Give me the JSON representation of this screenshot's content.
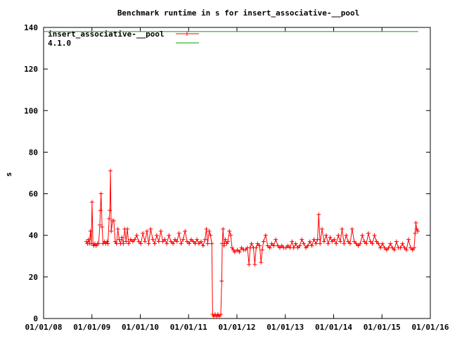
{
  "chart_data": {
    "type": "line",
    "title": "Benchmark runtime in s for insert_associative-__pool",
    "xlabel": "",
    "ylabel": "s",
    "xlim": [
      "2008-01-01",
      "2016-01-01"
    ],
    "ylim": [
      0,
      140
    ],
    "x_ticks": [
      "01/01/08",
      "01/01/09",
      "01/01/10",
      "01/01/11",
      "01/01/12",
      "01/01/13",
      "01/01/14",
      "01/01/15",
      "01/01/16"
    ],
    "y_ticks": [
      "0",
      "20",
      "40",
      "60",
      "80",
      "100",
      "120",
      "140"
    ],
    "grid": false,
    "legend": "top-left",
    "colors": {
      "series": "#ff0000",
      "reference": "#00a000",
      "axis": "#000000"
    },
    "series": [
      {
        "name": "insert_associative-__pool",
        "points": [
          [
            "2008-11-20",
            37
          ],
          [
            "2008-11-28",
            36
          ],
          [
            "2008-12-05",
            38
          ],
          [
            "2008-12-12",
            36
          ],
          [
            "2008-12-20",
            42
          ],
          [
            "2008-12-26",
            36
          ],
          [
            "2009-01-01",
            56
          ],
          [
            "2009-01-08",
            36
          ],
          [
            "2009-01-15",
            35
          ],
          [
            "2009-01-22",
            36
          ],
          [
            "2009-02-01",
            35
          ],
          [
            "2009-02-10",
            36
          ],
          [
            "2009-02-20",
            36
          ],
          [
            "2009-03-01",
            45
          ],
          [
            "2009-03-05",
            52
          ],
          [
            "2009-03-10",
            60
          ],
          [
            "2009-03-18",
            44
          ],
          [
            "2009-03-25",
            36
          ],
          [
            "2009-04-05",
            37
          ],
          [
            "2009-04-15",
            36
          ],
          [
            "2009-04-25",
            37
          ],
          [
            "2009-05-01",
            36
          ],
          [
            "2009-05-10",
            48
          ],
          [
            "2009-05-16",
            52
          ],
          [
            "2009-05-20",
            71
          ],
          [
            "2009-05-26",
            42
          ],
          [
            "2009-06-05",
            47
          ],
          [
            "2009-06-15",
            47
          ],
          [
            "2009-06-25",
            37
          ],
          [
            "2009-07-05",
            36
          ],
          [
            "2009-07-15",
            43
          ],
          [
            "2009-07-25",
            38
          ],
          [
            "2009-08-05",
            36
          ],
          [
            "2009-08-15",
            39
          ],
          [
            "2009-08-25",
            36
          ],
          [
            "2009-09-05",
            43
          ],
          [
            "2009-09-15",
            37
          ],
          [
            "2009-09-25",
            43
          ],
          [
            "2009-10-05",
            36
          ],
          [
            "2009-10-20",
            38
          ],
          [
            "2009-11-05",
            37
          ],
          [
            "2009-11-20",
            38
          ],
          [
            "2009-12-05",
            40
          ],
          [
            "2009-12-20",
            37
          ],
          [
            "2010-01-05",
            36
          ],
          [
            "2010-01-20",
            41
          ],
          [
            "2010-02-05",
            37
          ],
          [
            "2010-02-20",
            42
          ],
          [
            "2010-03-05",
            36
          ],
          [
            "2010-03-20",
            43
          ],
          [
            "2010-04-05",
            38
          ],
          [
            "2010-04-20",
            36
          ],
          [
            "2010-05-05",
            40
          ],
          [
            "2010-05-20",
            37
          ],
          [
            "2010-06-05",
            42
          ],
          [
            "2010-06-20",
            37
          ],
          [
            "2010-07-05",
            38
          ],
          [
            "2010-07-20",
            36
          ],
          [
            "2010-08-05",
            40
          ],
          [
            "2010-08-20",
            37
          ],
          [
            "2010-09-05",
            36
          ],
          [
            "2010-09-20",
            38
          ],
          [
            "2010-10-05",
            37
          ],
          [
            "2010-10-20",
            41
          ],
          [
            "2010-11-05",
            36
          ],
          [
            "2010-11-20",
            38
          ],
          [
            "2010-12-05",
            42
          ],
          [
            "2010-12-20",
            37
          ],
          [
            "2011-01-05",
            36
          ],
          [
            "2011-01-20",
            38
          ],
          [
            "2011-02-05",
            37
          ],
          [
            "2011-02-20",
            36
          ],
          [
            "2011-03-05",
            38
          ],
          [
            "2011-03-20",
            36
          ],
          [
            "2011-04-05",
            37
          ],
          [
            "2011-04-20",
            35
          ],
          [
            "2011-05-05",
            38
          ],
          [
            "2011-05-15",
            43
          ],
          [
            "2011-05-25",
            36
          ],
          [
            "2011-06-05",
            42
          ],
          [
            "2011-06-15",
            40
          ],
          [
            "2011-06-25",
            36
          ],
          [
            "2011-07-01",
            2
          ],
          [
            "2011-07-10",
            1
          ],
          [
            "2011-07-20",
            2
          ],
          [
            "2011-08-01",
            1
          ],
          [
            "2011-08-10",
            2
          ],
          [
            "2011-08-20",
            1
          ],
          [
            "2011-09-01",
            2
          ],
          [
            "2011-09-08",
            18
          ],
          [
            "2011-09-12",
            36
          ],
          [
            "2011-09-18",
            43
          ],
          [
            "2011-09-25",
            35
          ],
          [
            "2011-10-05",
            38
          ],
          [
            "2011-10-15",
            36
          ],
          [
            "2011-10-25",
            37
          ],
          [
            "2011-11-05",
            42
          ],
          [
            "2011-11-15",
            40
          ],
          [
            "2011-11-25",
            34
          ],
          [
            "2011-12-05",
            33
          ],
          [
            "2011-12-15",
            32
          ],
          [
            "2012-01-05",
            33
          ],
          [
            "2012-01-20",
            32
          ],
          [
            "2012-02-05",
            34
          ],
          [
            "2012-02-20",
            33
          ],
          [
            "2012-03-05",
            33
          ],
          [
            "2012-03-20",
            34
          ],
          [
            "2012-04-01",
            26
          ],
          [
            "2012-04-10",
            34
          ],
          [
            "2012-04-20",
            36
          ],
          [
            "2012-05-05",
            34
          ],
          [
            "2012-05-15",
            26
          ],
          [
            "2012-05-25",
            34
          ],
          [
            "2012-06-05",
            36
          ],
          [
            "2012-06-20",
            35
          ],
          [
            "2012-07-01",
            27
          ],
          [
            "2012-07-10",
            33
          ],
          [
            "2012-07-20",
            37
          ],
          [
            "2012-08-05",
            40
          ],
          [
            "2012-08-20",
            35
          ],
          [
            "2012-09-05",
            34
          ],
          [
            "2012-09-20",
            36
          ],
          [
            "2012-10-05",
            35
          ],
          [
            "2012-10-20",
            38
          ],
          [
            "2012-11-05",
            35
          ],
          [
            "2012-11-20",
            34
          ],
          [
            "2012-12-05",
            35
          ],
          [
            "2012-12-20",
            34
          ],
          [
            "2013-01-05",
            34
          ],
          [
            "2013-01-20",
            35
          ],
          [
            "2013-02-05",
            34
          ],
          [
            "2013-02-20",
            37
          ],
          [
            "2013-03-05",
            34
          ],
          [
            "2013-03-20",
            36
          ],
          [
            "2013-04-05",
            34
          ],
          [
            "2013-04-20",
            35
          ],
          [
            "2013-05-05",
            38
          ],
          [
            "2013-05-20",
            36
          ],
          [
            "2013-06-05",
            34
          ],
          [
            "2013-06-20",
            35
          ],
          [
            "2013-07-05",
            37
          ],
          [
            "2013-07-20",
            35
          ],
          [
            "2013-08-05",
            38
          ],
          [
            "2013-08-20",
            36
          ],
          [
            "2013-09-01",
            38
          ],
          [
            "2013-09-10",
            50
          ],
          [
            "2013-09-20",
            36
          ],
          [
            "2013-10-05",
            43
          ],
          [
            "2013-10-20",
            37
          ],
          [
            "2013-11-05",
            40
          ],
          [
            "2013-11-20",
            36
          ],
          [
            "2013-12-05",
            39
          ],
          [
            "2013-12-20",
            37
          ],
          [
            "2014-01-05",
            38
          ],
          [
            "2014-01-20",
            36
          ],
          [
            "2014-02-05",
            40
          ],
          [
            "2014-02-20",
            37
          ],
          [
            "2014-03-05",
            43
          ],
          [
            "2014-03-20",
            36
          ],
          [
            "2014-04-05",
            40
          ],
          [
            "2014-04-20",
            37
          ],
          [
            "2014-05-05",
            36
          ],
          [
            "2014-05-20",
            43
          ],
          [
            "2014-06-05",
            37
          ],
          [
            "2014-06-20",
            36
          ],
          [
            "2014-07-05",
            35
          ],
          [
            "2014-07-20",
            36
          ],
          [
            "2014-08-05",
            40
          ],
          [
            "2014-08-20",
            37
          ],
          [
            "2014-09-05",
            36
          ],
          [
            "2014-09-20",
            41
          ],
          [
            "2014-10-05",
            37
          ],
          [
            "2014-10-20",
            36
          ],
          [
            "2014-11-05",
            40
          ],
          [
            "2014-11-20",
            37
          ],
          [
            "2014-12-05",
            36
          ],
          [
            "2014-12-20",
            34
          ],
          [
            "2015-01-05",
            36
          ],
          [
            "2015-01-20",
            34
          ],
          [
            "2015-02-05",
            33
          ],
          [
            "2015-02-20",
            34
          ],
          [
            "2015-03-05",
            36
          ],
          [
            "2015-03-20",
            34
          ],
          [
            "2015-04-05",
            33
          ],
          [
            "2015-04-20",
            37
          ],
          [
            "2015-05-05",
            34
          ],
          [
            "2015-05-20",
            34
          ],
          [
            "2015-06-05",
            36
          ],
          [
            "2015-06-20",
            34
          ],
          [
            "2015-07-05",
            33
          ],
          [
            "2015-07-20",
            38
          ],
          [
            "2015-08-05",
            34
          ],
          [
            "2015-08-20",
            33
          ],
          [
            "2015-09-01",
            34
          ],
          [
            "2015-09-08",
            41
          ],
          [
            "2015-09-14",
            46
          ],
          [
            "2015-09-20",
            43
          ],
          [
            "2015-09-28",
            42
          ]
        ]
      },
      {
        "name": "4.1.0",
        "points": [
          [
            "2008-01-01",
            138
          ],
          [
            "2015-10-01",
            138
          ]
        ]
      }
    ]
  }
}
